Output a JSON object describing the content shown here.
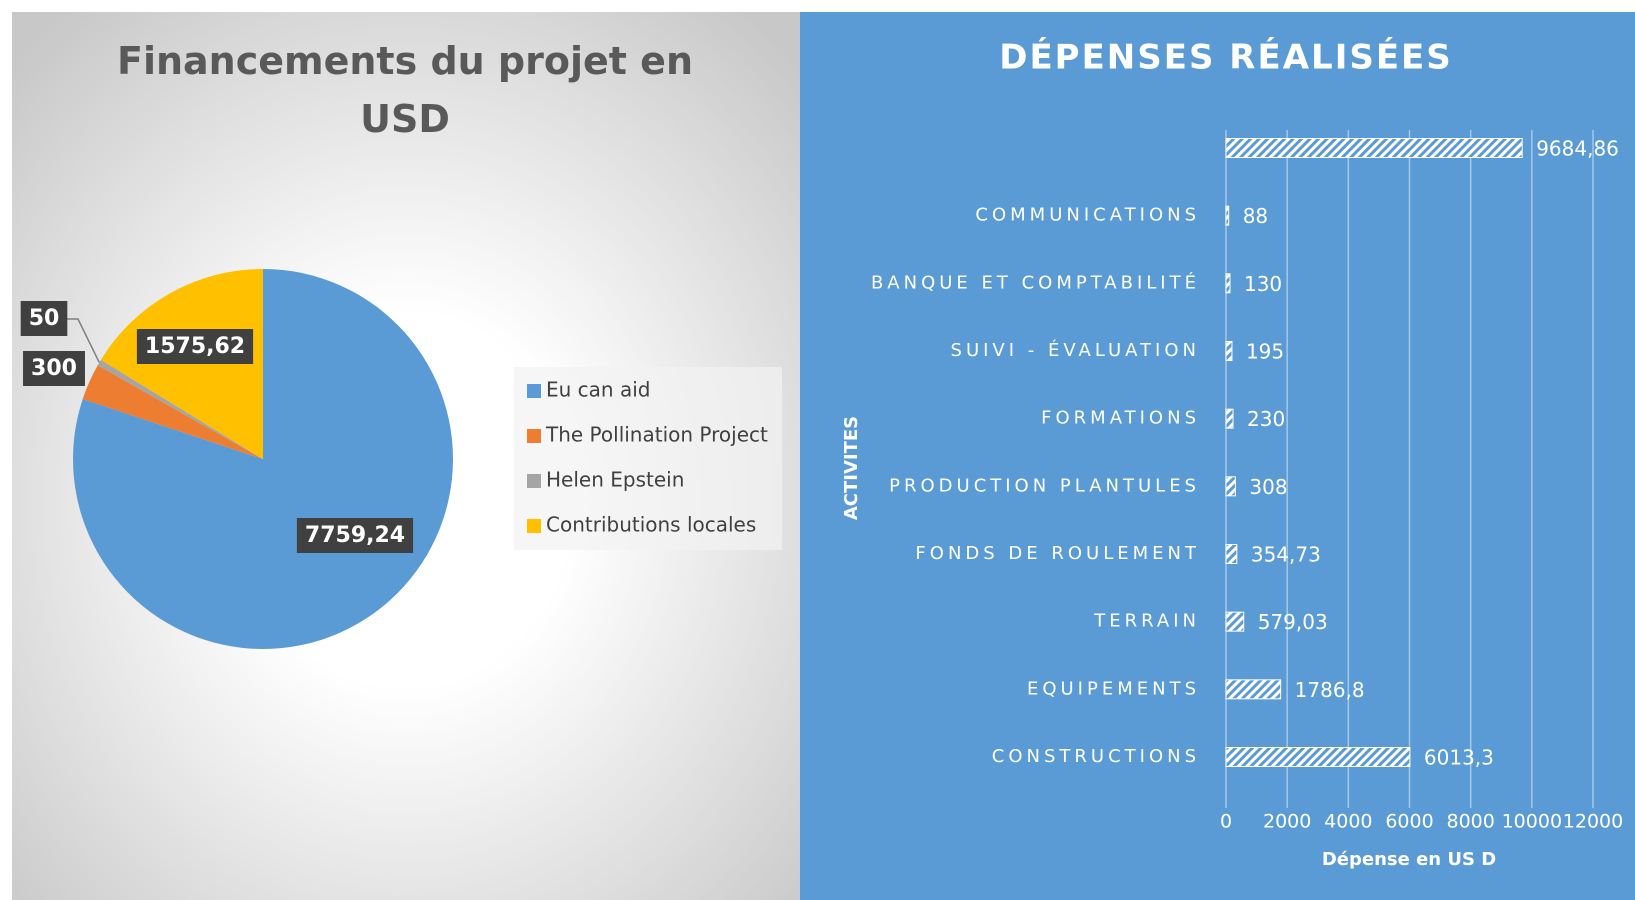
{
  "chart_data": [
    {
      "type": "pie",
      "title": "Financements du projet en USD",
      "categories": [
        "Eu can aid",
        "The Pollination Project",
        "Helen Epstein",
        "Contributions locales"
      ],
      "values": [
        7759.24,
        300,
        50,
        1575.62
      ],
      "value_labels": [
        "7759,24",
        "300",
        "50",
        "1575,62"
      ],
      "colors": [
        "#5b9bd5",
        "#ed7d31",
        "#a5a5a5",
        "#ffc000"
      ],
      "legend": "right"
    },
    {
      "type": "hbar",
      "title": "DÉPENSES RÉALISÉES",
      "x_label": "Dépense en US D",
      "y_label": "ACTIVITES",
      "categories": [
        "CONSTRUCTIONS",
        "EQUIPEMENTS",
        "TERRAIN",
        "FONDS DE ROULEMENT",
        "PRODUCTION PLANTULES",
        "FORMATIONS",
        "SUIVI - ÉVALUATION",
        "BANQUE ET COMPTABILITÉ",
        "COMMUNICATIONS",
        null
      ],
      "values": [
        6013.3,
        1786.8,
        579.03,
        354.73,
        308,
        230,
        195,
        130,
        88,
        9684.86
      ],
      "value_labels": [
        "6013,3",
        "1786,8",
        "579,03",
        "354,73",
        "308",
        "230",
        "195",
        "130",
        "88",
        "9684,86"
      ],
      "xlim": [
        0,
        12000
      ],
      "xticks": [
        0,
        2000,
        4000,
        6000,
        8000,
        10000,
        12000
      ],
      "grid": true,
      "color": "#ffffff"
    }
  ]
}
